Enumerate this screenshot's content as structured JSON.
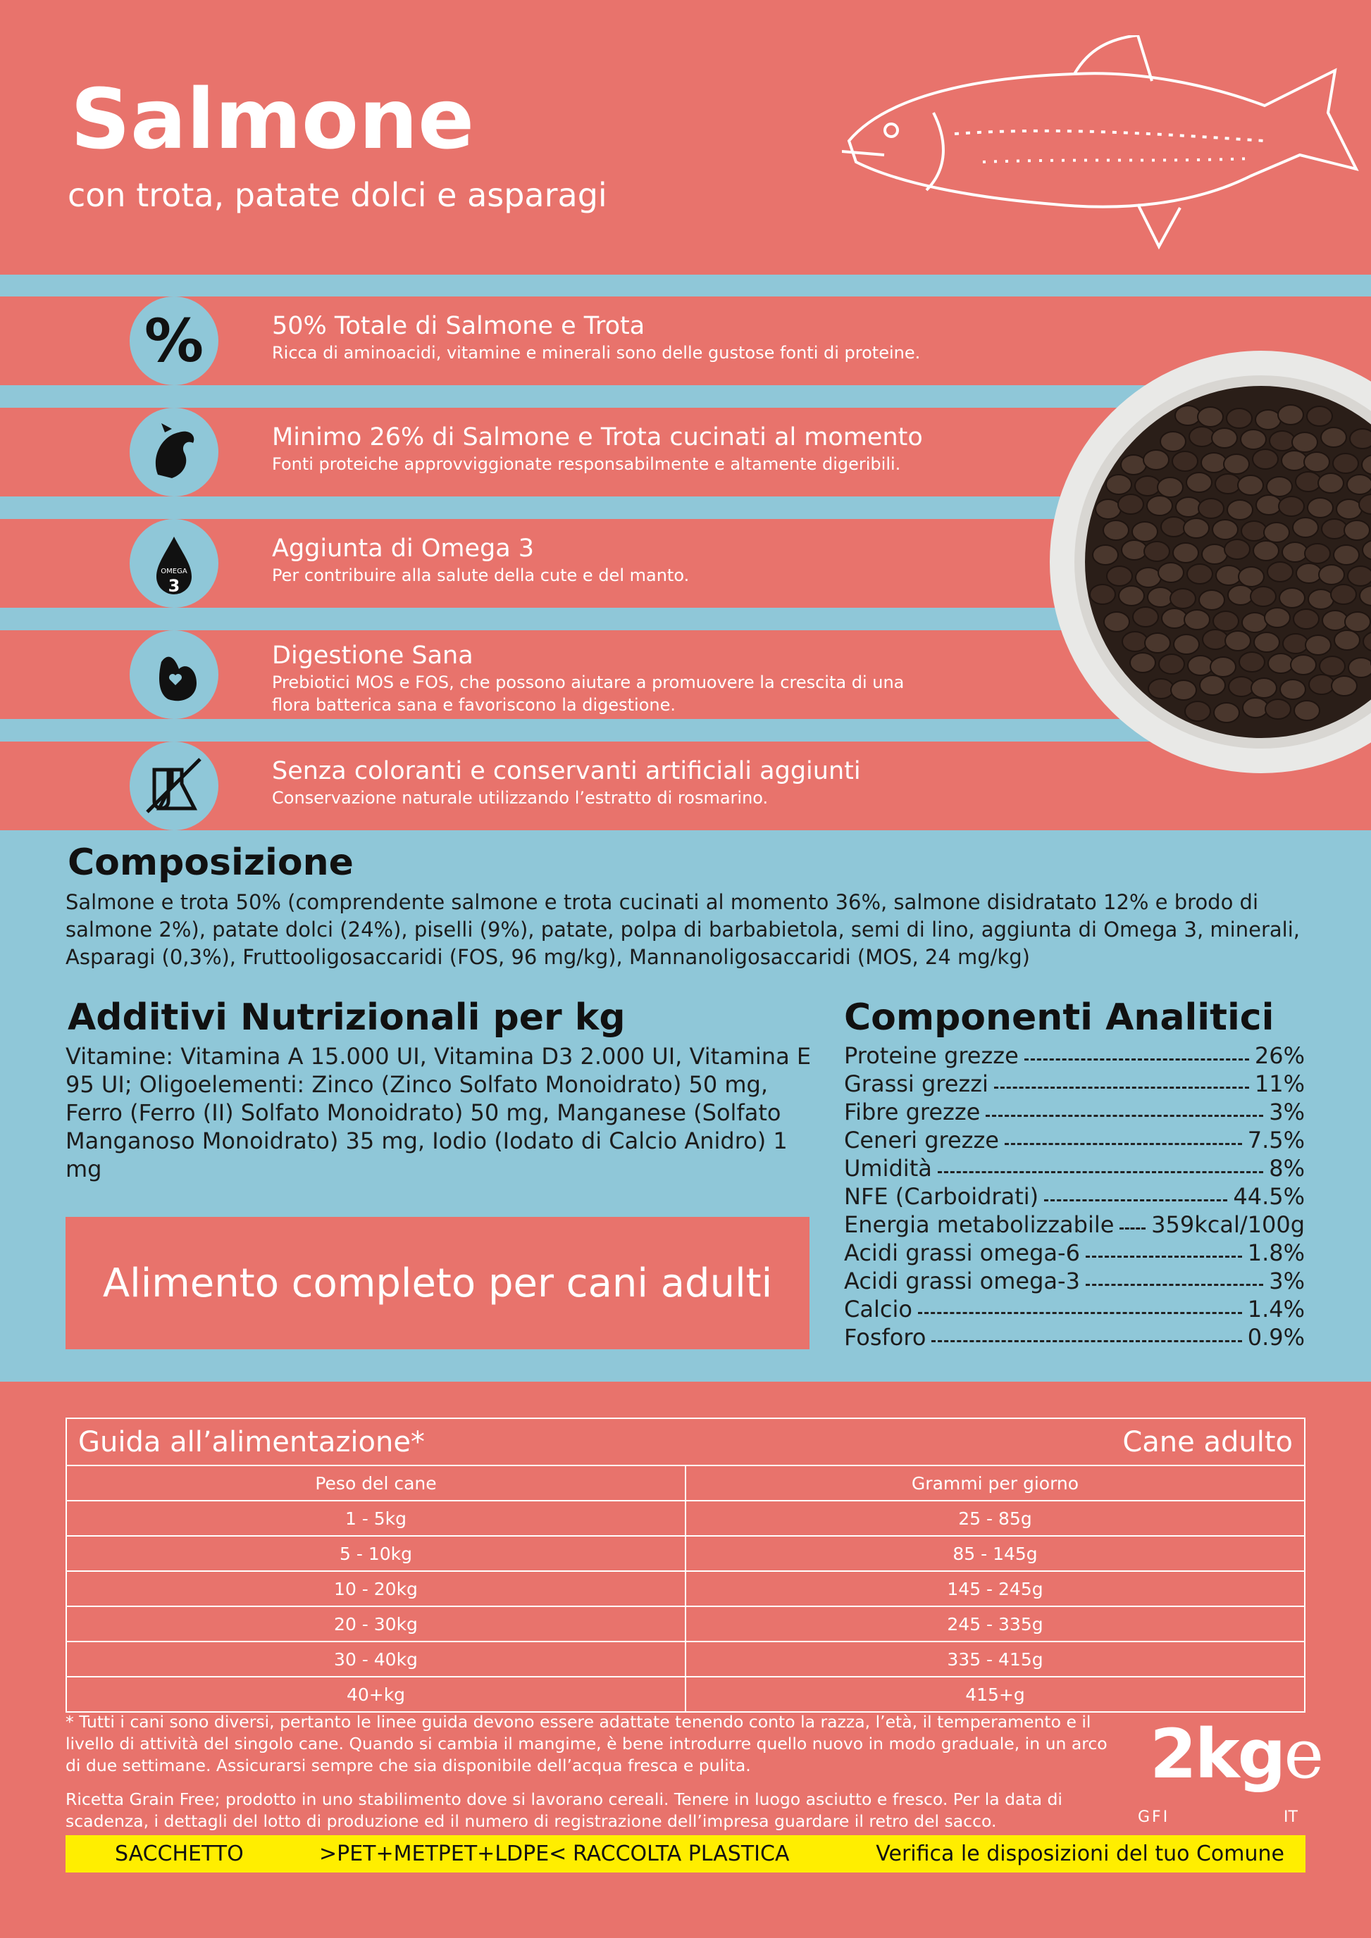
{
  "header": {
    "title": "Salmone",
    "subtitle": "con trota, patate dolci e asparagi"
  },
  "features": [
    {
      "icon_text": "%",
      "title": "50% Totale di Salmone e Trota",
      "lines": [
        "Ricca di aminoacidi, vitamine e minerali sono delle gustose fonti di proteine."
      ]
    },
    {
      "title": "Minimo 26% di Salmone e Trota cucinati al momento",
      "lines": [
        "Fonti proteiche approvviggionate responsabilmente e altamente digeribili."
      ]
    },
    {
      "icon_text": "OMEGA",
      "icon_number": "3",
      "title": "Aggiunta di Omega 3",
      "lines": [
        "Per contribuire alla salute della cute e del manto."
      ]
    },
    {
      "title": "Digestione Sana",
      "lines": [
        "Prebiotici MOS e FOS, che possono aiutare a promuovere la crescita di una",
        "flora batterica sana e favoriscono la digestione."
      ]
    },
    {
      "title": "Senza coloranti e conservanti artificiali aggiunti",
      "lines": [
        "Conservazione naturale utilizzando l’estratto di rosmarino."
      ]
    }
  ],
  "composition": {
    "title": "Composizione",
    "text": "Salmone e trota 50% (comprendente salmone e trota cucinati al momento 36%, salmone disidratato 12% e brodo di salmone 2%), patate dolci (24%), piselli (9%), patate, polpa di barbabietola, semi di lino, aggiunta di Omega 3, minerali, Asparagi (0,3%), Fruttooligosaccaridi (FOS, 96 mg/kg), Mannanoligosaccaridi (MOS, 24 mg/kg)"
  },
  "additives": {
    "title": "Additivi Nutrizionali per kg",
    "text": "Vitamine: Vitamina A 15.000 UI, Vitamina D3 2.000 UI, Vitamina E 95 UI; Oligoelementi: Zinco (Zinco Solfato Monoidrato) 50 mg, Ferro (Ferro (II) Solfato Monoidrato) 50 mg, Manganese (Solfato Manganoso Monoidrato) 35 mg, Iodio (Iodato di Calcio Anidro) 1 mg"
  },
  "claim": "Alimento completo per cani adulti",
  "analytical": {
    "title": "Componenti Analitici",
    "rows": [
      {
        "name": "Proteine grezze",
        "value": "26%"
      },
      {
        "name": "Grassi grezzi",
        "value": "11%"
      },
      {
        "name": "Fibre grezze",
        "value": "3%"
      },
      {
        "name": "Ceneri grezze",
        "value": "7.5%"
      },
      {
        "name": "Umidità",
        "value": "8%"
      },
      {
        "name": "NFE (Carboidrati)",
        "value": "44.5%"
      },
      {
        "name": "Energia metabolizzabile",
        "value": "359kcal/100g"
      },
      {
        "name": "Acidi grassi omega-6",
        "value": "1.8%"
      },
      {
        "name": "Acidi grassi omega-3",
        "value": "3%"
      },
      {
        "name": "Calcio",
        "value": "1.4%"
      },
      {
        "name": "Fosforo",
        "value": "0.9%"
      }
    ]
  },
  "feeding_guide": {
    "title": "Guida all’alimentazione*",
    "subtitle": "Cane adulto",
    "columns": [
      "Peso del cane",
      "Grammi per giorno"
    ],
    "rows": [
      [
        "1 - 5kg",
        "25 - 85g"
      ],
      [
        "5 - 10kg",
        "85 - 145g"
      ],
      [
        "10 - 20kg",
        "145 - 245g"
      ],
      [
        "20 - 30kg",
        "245 - 335g"
      ],
      [
        "30 - 40kg",
        "335 - 415g"
      ],
      [
        "40+kg",
        "415+g"
      ]
    ]
  },
  "footnote": "* Tutti i cani sono diversi, pertanto le linee guida devono essere adattate tenendo conto la razza, l’età, il temperamento e il livello di attività del singolo cane. Quando si cambia il mangime, è bene introdurre quello nuovo in modo graduale, in un arco di due settimane. Assicurarsi sempre che sia disponibile dell’acqua fresca e pulita.",
  "note": "Ricetta Grain Free; prodotto in uno stabilimento dove si lavorano cereali. Tenere in luogo asciutto e fresco. Per la data di scadenza, i dettagli del lotto di produzione ed il numero di registrazione dell’impresa guardare il retro del sacco.",
  "weight": "2kg",
  "weight_mark": "e",
  "codes": [
    "GFI",
    "IT"
  ],
  "recycling": [
    "SACCHETTO",
    ">PET+METPET+LDPE<",
    "RACCOLTA PLASTICA",
    "Verifica le disposizioni del tuo Comune"
  ]
}
